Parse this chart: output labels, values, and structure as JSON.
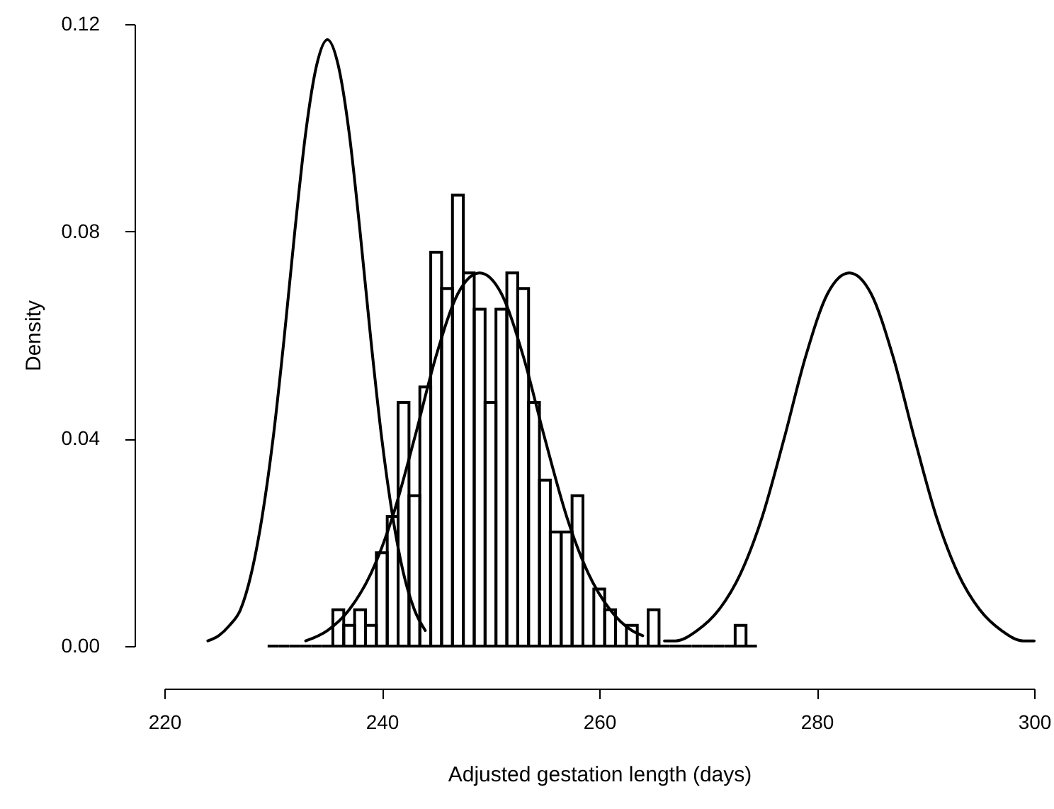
{
  "chart_data": {
    "type": "histogram",
    "xlabel": "Adjusted gestation length (days)",
    "ylabel": "Density",
    "color": "#000000",
    "bins": [
      229.5,
      230.5,
      231.5,
      232.5,
      233.5,
      234.5,
      235.5,
      236.5,
      237.5,
      238.5,
      239.5,
      240.5,
      241.5,
      242.5,
      243.5,
      244.5,
      245.5,
      246.5,
      247.5,
      248.5,
      249.5,
      250.5,
      251.5,
      252.5,
      253.5,
      254.5,
      255.5,
      256.5,
      257.5,
      258.5,
      259.5,
      260.5,
      261.5,
      262.5,
      263.5,
      264.5,
      265.5,
      266.5,
      267.5,
      268.5,
      269.5,
      270.5,
      271.5,
      272.5,
      273.5,
      274.5
    ],
    "values": [
      0,
      0,
      0,
      0,
      0,
      0,
      0.007,
      0.004,
      0.007,
      0.004,
      0.018,
      0.025,
      0.047,
      0.029,
      0.05,
      0.076,
      0.069,
      0.087,
      0.072,
      0.065,
      0.047,
      0.065,
      0.072,
      0.069,
      0.047,
      0.032,
      0.022,
      0.022,
      0.029,
      0,
      0.011,
      0.007,
      0,
      0.004,
      0,
      0.007,
      0,
      0,
      0,
      0,
      0,
      0,
      0,
      0.004,
      0
    ],
    "series": [
      {
        "type": "line",
        "color": "#000000",
        "x": [
          224,
          225,
          226,
          227,
          228,
          229,
          230,
          231,
          232,
          233,
          234,
          235,
          236,
          237,
          238,
          239,
          240,
          241,
          242,
          243,
          244
        ],
        "values": [
          0.001,
          0.002,
          0.004,
          0.007,
          0.014,
          0.025,
          0.04,
          0.059,
          0.08,
          0.099,
          0.112,
          0.117,
          0.112,
          0.099,
          0.08,
          0.059,
          0.04,
          0.025,
          0.014,
          0.007,
          0.003
        ]
      },
      {
        "type": "line",
        "color": "#000000",
        "x": [
          233,
          235,
          237,
          239,
          241,
          243,
          245,
          247,
          249,
          251,
          253,
          255,
          257,
          259,
          261,
          263,
          264
        ],
        "values": [
          0.001,
          0.003,
          0.007,
          0.014,
          0.025,
          0.04,
          0.056,
          0.068,
          0.072,
          0.068,
          0.056,
          0.04,
          0.025,
          0.014,
          0.007,
          0.003,
          0.002
        ]
      },
      {
        "type": "line",
        "color": "#000000",
        "x": [
          266,
          267,
          269,
          271,
          273,
          275,
          277,
          279,
          281,
          283,
          285,
          287,
          289,
          291,
          293,
          295,
          297,
          299,
          300
        ],
        "values": [
          0.001,
          0.001,
          0.003,
          0.007,
          0.014,
          0.025,
          0.04,
          0.056,
          0.068,
          0.072,
          0.068,
          0.056,
          0.04,
          0.025,
          0.014,
          0.007,
          0.003,
          0.001,
          0.001
        ]
      }
    ],
    "xlim": [
      220,
      300
    ],
    "xticks": [
      220,
      240,
      260,
      280,
      300
    ],
    "ylim": [
      0,
      0.12
    ],
    "yticks": [
      {
        "value": 0,
        "label": "0.00"
      },
      {
        "value": 0.04,
        "label": "0.04"
      },
      {
        "value": 0.08,
        "label": "0.08"
      },
      {
        "value": 0.12,
        "label": "0.12"
      }
    ],
    "grid": false
  }
}
